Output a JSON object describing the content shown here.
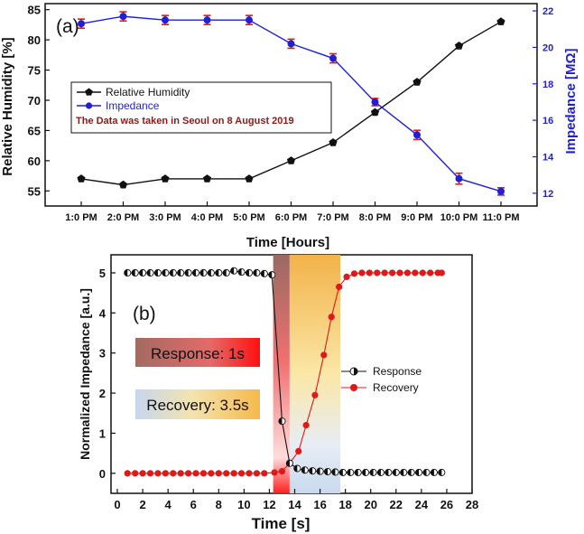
{
  "chart_data": [
    {
      "type": "line",
      "panel_label": "(a)",
      "categories": [
        "1:0 PM",
        "2:0 PM",
        "3:0 PM",
        "4:0 PM",
        "5:0 PM",
        "6:0 PM",
        "7:0 PM",
        "8:0 PM",
        "9:0 PM",
        "10:0 PM",
        "11:0 PM"
      ],
      "xlabel": "Time [Hours]",
      "ylabel": "Relative Humidity [%]",
      "y2label": "Impedance [MΩ]",
      "ylim": [
        52.5,
        86
      ],
      "y2lim": [
        11.3,
        22.4
      ],
      "yticks": [
        "55",
        "60",
        "65",
        "70",
        "75",
        "80",
        "85"
      ],
      "y2ticks": [
        "12",
        "14",
        "16",
        "18",
        "20",
        "22"
      ],
      "series": [
        {
          "name": "Relative Humidity",
          "axis": "left",
          "color": "#111111",
          "marker": "pentagon",
          "values": [
            57,
            56,
            57,
            57,
            57,
            60,
            63,
            68,
            73,
            79,
            83
          ]
        },
        {
          "name": "Impedance",
          "axis": "right",
          "color": "#1f1fd6",
          "marker": "circle",
          "values": [
            21.3,
            21.7,
            21.5,
            21.5,
            21.5,
            20.2,
            19.4,
            17.0,
            15.2,
            12.8,
            12.1
          ],
          "errors": [
            0.25,
            0.25,
            0.25,
            0.25,
            0.25,
            0.25,
            0.25,
            0.2,
            0.25,
            0.3,
            0.2
          ]
        }
      ],
      "annotation": "The Data was taken in Seoul on 8 August 2019",
      "legend_position": "center-left"
    },
    {
      "type": "line",
      "panel_label": "(b)",
      "xlabel": "Time [s]",
      "ylabel": "Normalized Impedance [a.u.]",
      "xlim": [
        -0.5,
        28
      ],
      "ylim": [
        -0.5,
        5.45
      ],
      "xticks": [
        "0",
        "2",
        "4",
        "6",
        "8",
        "10",
        "12",
        "14",
        "16",
        "18",
        "20",
        "22",
        "24",
        "26",
        "28"
      ],
      "yticks": [
        "0",
        "1",
        "2",
        "3",
        "4",
        "5"
      ],
      "series": [
        {
          "name": "Response",
          "color": "#111111",
          "marker": "half-circle",
          "x": [
            0.8,
            1.4,
            2,
            2.6,
            3.2,
            3.8,
            4.4,
            5,
            5.6,
            6.2,
            6.8,
            7.4,
            8,
            8.6,
            9.2,
            9.8,
            10.4,
            11,
            11.6,
            12.2,
            13,
            13.6,
            14.2,
            14.8,
            15.4,
            16,
            16.6,
            17.2,
            17.8,
            18.4,
            19,
            19.6,
            20.2,
            20.8,
            21.4,
            22,
            22.6,
            23.2,
            23.8,
            24.4,
            25,
            25.6
          ],
          "y": [
            5,
            5,
            5,
            5,
            5,
            5,
            5,
            5,
            5,
            5,
            5,
            5,
            5,
            5,
            5.05,
            5.02,
            5,
            5,
            4.98,
            4.95,
            1.3,
            0.25,
            0.12,
            0.08,
            0.06,
            0.05,
            0.04,
            0.03,
            0.02,
            0.02,
            0.02,
            0.02,
            0.02,
            0.02,
            0.02,
            0.02,
            0.02,
            0.02,
            0.02,
            0.02,
            0.02,
            0.02
          ]
        },
        {
          "name": "Recovery",
          "color": "#e01818",
          "marker": "circle",
          "x": [
            0.8,
            1.4,
            2,
            2.6,
            3.2,
            3.8,
            4.4,
            5,
            5.6,
            6.2,
            6.8,
            7.4,
            8,
            8.6,
            9.2,
            9.8,
            10.4,
            11,
            11.6,
            12.4,
            13,
            13.6,
            14.3,
            14.9,
            15.6,
            16.3,
            16.9,
            17.5,
            18.1,
            18.7,
            19.3,
            19.9,
            20.5,
            21.1,
            21.7,
            22.3,
            22.9,
            23.5,
            24.1,
            24.7,
            25.3,
            25.6
          ],
          "y": [
            0,
            0,
            0,
            0,
            0,
            0,
            0,
            0,
            0,
            0,
            0,
            0,
            0,
            0,
            0,
            0,
            0,
            0,
            0,
            0.02,
            0.05,
            0.25,
            0.55,
            1.2,
            1.95,
            2.95,
            3.9,
            4.65,
            4.9,
            4.98,
            5,
            5,
            5,
            5,
            5,
            5,
            5,
            5,
            5,
            5,
            5,
            5
          ]
        }
      ],
      "response_box": "Response: 1s",
      "recovery_box": "Recovery: 3.5s",
      "response_window": [
        12.3,
        13.6
      ],
      "recovery_window": [
        13.6,
        17.6
      ],
      "legend_position": "center-right"
    }
  ]
}
